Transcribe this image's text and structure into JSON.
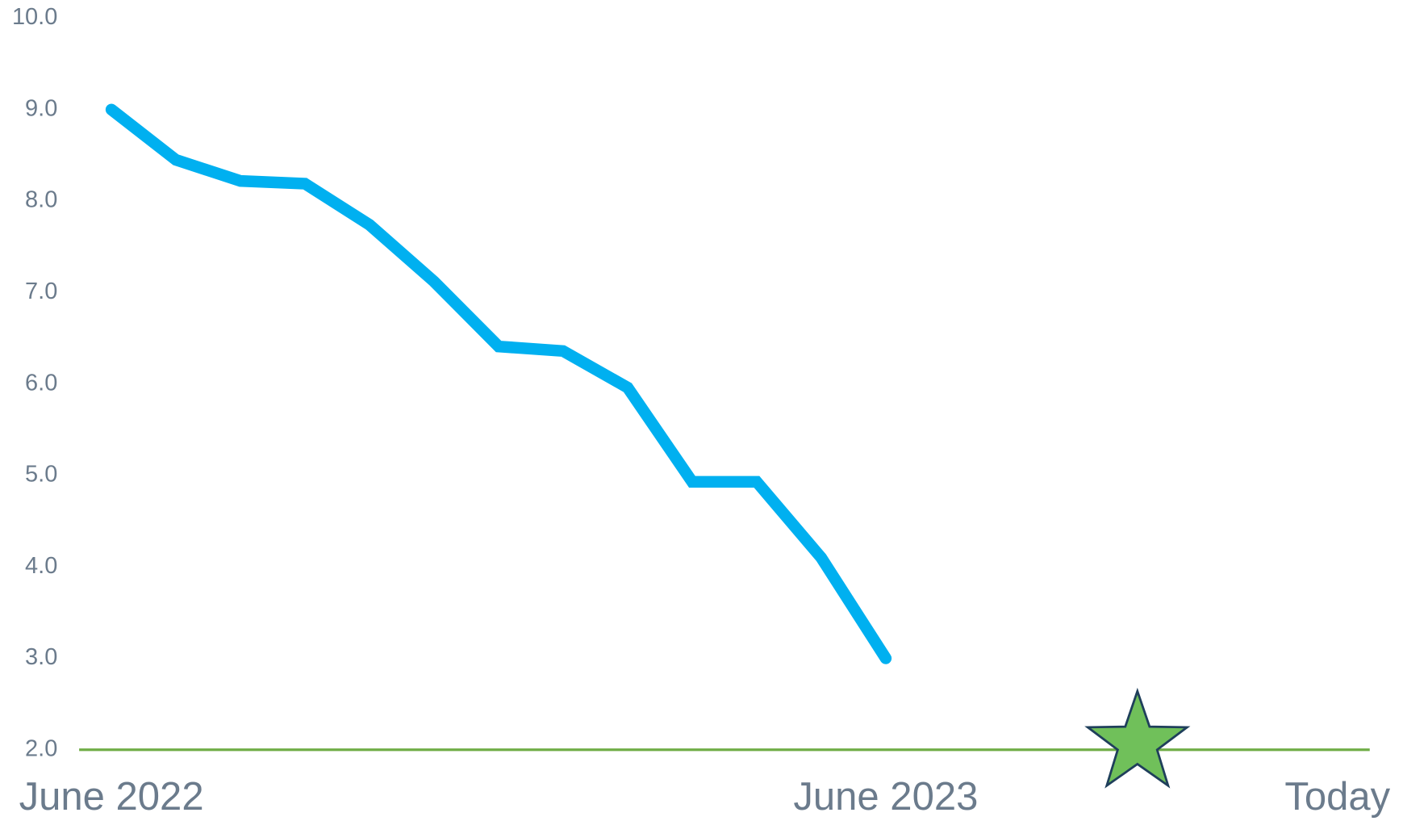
{
  "chart_data": {
    "type": "line",
    "x": [
      0,
      1,
      2,
      3,
      4,
      5,
      6,
      7,
      8,
      9,
      10,
      11,
      12
    ],
    "series": [
      {
        "color": "#00b0f0",
        "values": [
          9.0,
          8.45,
          8.22,
          8.19,
          7.74,
          7.12,
          6.41,
          6.36,
          5.96,
          4.93,
          4.93,
          4.1,
          3.0
        ]
      }
    ],
    "xlim": [
      -0.5,
      19.5
    ],
    "xticks": [
      {
        "value": 0,
        "label": "June 2022"
      },
      {
        "value": 12,
        "label": "June 2023"
      },
      {
        "value": 19,
        "label": "Today"
      }
    ],
    "ylim": [
      2,
      10
    ],
    "yticks": [
      {
        "value": 2,
        "label": "2.0"
      },
      {
        "value": 3,
        "label": "3.0"
      },
      {
        "value": 4,
        "label": "4.0"
      },
      {
        "value": 5,
        "label": "5.0"
      },
      {
        "value": 6,
        "label": "6.0"
      },
      {
        "value": 7,
        "label": "7.0"
      },
      {
        "value": 8,
        "label": "8.0"
      },
      {
        "value": 9,
        "label": "9.0"
      },
      {
        "value": 10,
        "label": "10.0"
      }
    ],
    "reference_line": {
      "y": 2,
      "color": "#70ad47"
    },
    "target": {
      "x": 15.9,
      "y": 2.07,
      "color": "#70c05a"
    }
  }
}
